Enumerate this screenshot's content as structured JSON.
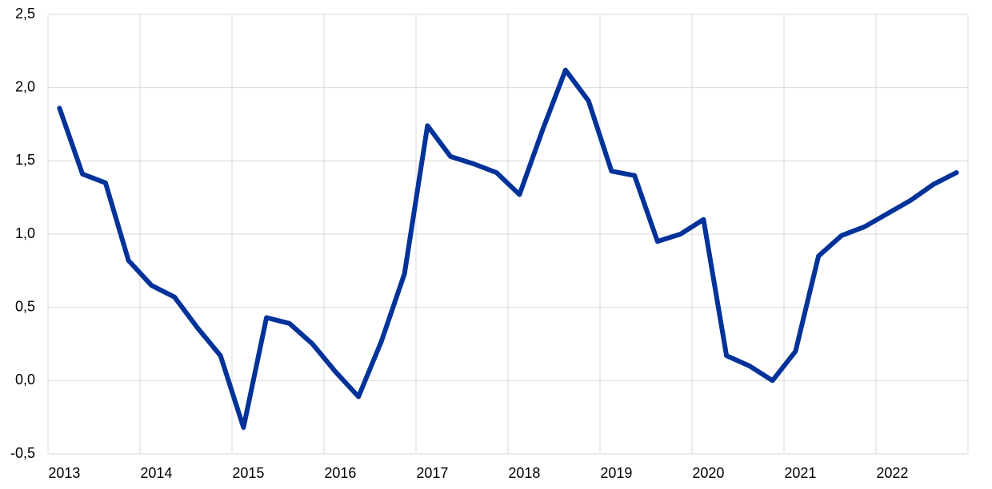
{
  "chart_data": {
    "type": "line",
    "categories": [
      "2013",
      null,
      null,
      null,
      "2014",
      null,
      null,
      null,
      "2015",
      null,
      null,
      null,
      "2016",
      null,
      null,
      null,
      "2017",
      null,
      null,
      null,
      "2018",
      null,
      null,
      null,
      "2019",
      null,
      null,
      null,
      "2020",
      null,
      null,
      null,
      "2021",
      null,
      null,
      null,
      "2022",
      null,
      null,
      null
    ],
    "series": [
      {
        "color": "#003299",
        "values": [
          1.86,
          1.41,
          1.35,
          0.82,
          0.65,
          0.57,
          0.36,
          0.17,
          -0.32,
          0.43,
          0.39,
          0.25,
          0.06,
          -0.11,
          0.27,
          0.73,
          1.74,
          1.53,
          1.48,
          1.42,
          1.27,
          1.71,
          2.12,
          1.91,
          1.43,
          1.4,
          0.95,
          1.0,
          1.1,
          0.17,
          0.1,
          0.0,
          0.2,
          0.85,
          0.99,
          1.05,
          1.14,
          1.23,
          1.34,
          1.42
        ]
      }
    ],
    "ylim": [
      -0.5,
      2.5
    ],
    "yticks": [
      {
        "value": -0.5,
        "label": "-0,5"
      },
      {
        "value": 0,
        "label": "0,0"
      },
      {
        "value": 0.5,
        "label": "0,5"
      },
      {
        "value": 1,
        "label": "1,0"
      },
      {
        "value": 1.5,
        "label": "1,5"
      },
      {
        "value": 2,
        "label": "2,0"
      },
      {
        "value": 2.5,
        "label": "2,5"
      }
    ],
    "grid": true
  }
}
